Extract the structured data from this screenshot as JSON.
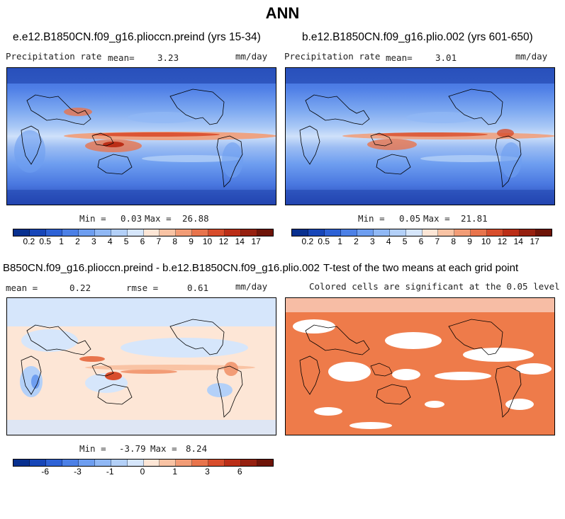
{
  "title": "ANN",
  "panels": {
    "top_left": {
      "run": "e.e12.B1850CN.f09_g16.plioccn.preind (yrs 15-34)",
      "variable": "Precipitation rate",
      "mean_label": "mean=",
      "mean_value": "3.23",
      "units": "mm/day",
      "min_label": "Min =",
      "min_value": "0.03",
      "max_label": "Max =",
      "max_value": "26.88"
    },
    "top_right": {
      "run": "b.e12.B1850CN.f09_g16.plio.002 (yrs 601-650)",
      "variable": "Precipitation rate",
      "mean_label": "mean=",
      "mean_value": "3.01",
      "units": "mm/day",
      "min_label": "Min =",
      "min_value": "0.05",
      "max_label": "Max =",
      "max_value": "21.81"
    },
    "bottom_left": {
      "run": "B850CN.f09_g16.plioccn.preind - b.e12.B1850CN.f09_g16.plio.002",
      "mean_label": "mean =",
      "mean_value": "0.22",
      "rmse_label": "rmse =",
      "rmse_value": "0.61",
      "units": "mm/day",
      "min_label": "Min =",
      "min_value": "-3.79",
      "max_label": "Max =",
      "max_value": "8.24"
    },
    "bottom_right": {
      "title": "T-test of the two means at each grid point",
      "subtitle": "Colored cells are significant at the 0.05 level"
    }
  },
  "colorbars": {
    "precip": {
      "ticks": [
        "0.2",
        "0.5",
        "1",
        "2",
        "3",
        "4",
        "5",
        "6",
        "7",
        "8",
        "9",
        "10",
        "12",
        "14",
        "17"
      ],
      "colors": [
        "#08308f",
        "#1746b8",
        "#2e62d6",
        "#4c80e6",
        "#6e9ef0",
        "#90b8f5",
        "#b3d0f8",
        "#d6e6fb",
        "#fde6d6",
        "#f9c3a4",
        "#f29c76",
        "#e8744c",
        "#d84d2c",
        "#bb2e17",
        "#962010",
        "#6e1408"
      ]
    },
    "diff": {
      "ticks": [
        "-6",
        "-3",
        "-1",
        "0",
        "1",
        "3",
        "6"
      ],
      "colors": [
        "#08308f",
        "#1746b8",
        "#2e62d6",
        "#4c80e6",
        "#6e9ef0",
        "#90b8f5",
        "#b3d0f8",
        "#d6e6fb",
        "#fde6d6",
        "#f9c3a4",
        "#f29c76",
        "#e8744c",
        "#d84d2c",
        "#bb2e17",
        "#962010",
        "#6e1408"
      ]
    }
  }
}
